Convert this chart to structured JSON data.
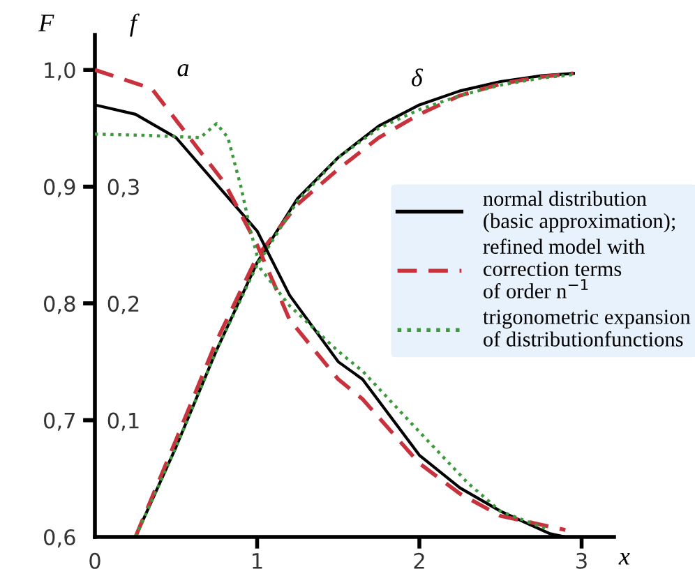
{
  "chart_data": {
    "type": "line",
    "xlabel": "x",
    "ylabel": "F",
    "y2label": "f",
    "xlim": [
      0,
      3.2
    ],
    "xticks": [
      0,
      1,
      2,
      3
    ],
    "ylim": [
      0.6,
      1.03
    ],
    "yticks": [
      {
        "value": 0.6,
        "label": "0,6"
      },
      {
        "value": 0.7,
        "label": "0,7"
      },
      {
        "value": 0.8,
        "label": "0,8"
      },
      {
        "value": 0.9,
        "label": "0,9"
      },
      {
        "value": 1.0,
        "label": "1,0"
      }
    ],
    "y2lim": [
      0,
      0.43
    ],
    "y2ticks": [
      {
        "value": 0.1,
        "label": "0,1"
      },
      {
        "value": 0.2,
        "label": "0,2"
      },
      {
        "value": 0.3,
        "label": "0,3"
      }
    ],
    "grid": false,
    "legend": "right",
    "series": [
      {
        "name": "normal distribution\n(basic approximation);",
        "color": "#000000",
        "line_style": "solid",
        "x": [
          0.25,
          0.5,
          0.75,
          1.0,
          1.25,
          1.5,
          1.75,
          2.0,
          2.25,
          2.5,
          2.75,
          2.95
        ],
        "values": [
          0.6,
          0.677,
          0.76,
          0.835,
          0.89,
          0.925,
          0.952,
          0.97,
          0.982,
          0.99,
          0.995,
          0.997
        ]
      },
      {
        "name": "refined model with\ncorrection terms\nof order n$^{−1}$",
        "color": "#c8323c",
        "line_style": "dashed",
        "x": [
          0.25,
          0.5,
          0.75,
          1.0,
          1.25,
          1.5,
          1.75,
          2.0,
          2.25,
          2.5,
          2.75,
          2.95
        ],
        "values": [
          0.6,
          0.683,
          0.768,
          0.84,
          0.885,
          0.915,
          0.942,
          0.962,
          0.978,
          0.988,
          0.994,
          0.997
        ]
      },
      {
        "name": "trigonometric expansion\nof distributionfunctions",
        "color": "#3c9a3c",
        "line_style": "dotted",
        "x": [
          0.25,
          0.5,
          0.75,
          1.0,
          1.25,
          1.5,
          1.75,
          2.0,
          2.25,
          2.5,
          2.75,
          2.95
        ],
        "values": [
          0.6,
          0.677,
          0.76,
          0.833,
          0.888,
          0.925,
          0.95,
          0.966,
          0.978,
          0.987,
          0.993,
          0.996
        ]
      },
      {
        "axis": "y2",
        "color": "#000000",
        "line_style": "solid",
        "x": [
          0,
          0.25,
          0.5,
          0.8,
          1.0,
          1.2,
          1.5,
          1.65,
          2.0,
          2.25,
          2.5,
          2.8,
          2.9
        ],
        "values": [
          0.37,
          0.362,
          0.342,
          0.294,
          0.262,
          0.207,
          0.15,
          0.135,
          0.07,
          0.042,
          0.022,
          0.003,
          0.0
        ]
      },
      {
        "axis": "y2",
        "color": "#c8323c",
        "line_style": "dashed",
        "x": [
          0,
          0.35,
          0.6,
          0.8,
          1.0,
          1.2,
          1.5,
          1.65,
          2.0,
          2.25,
          2.5,
          2.9
        ],
        "values": [
          0.4,
          0.384,
          0.339,
          0.303,
          0.25,
          0.186,
          0.135,
          0.118,
          0.063,
          0.037,
          0.018,
          0.006
        ]
      },
      {
        "axis": "y2",
        "color": "#3c9a3c",
        "line_style": "dotted",
        "x": [
          0,
          0.3,
          0.65,
          0.75,
          0.82,
          0.9,
          0.96,
          1.02,
          1.2,
          1.5,
          1.65,
          2.0,
          2.3,
          2.5,
          2.8
        ],
        "values": [
          0.345,
          0.344,
          0.342,
          0.354,
          0.342,
          0.3,
          0.262,
          0.23,
          0.198,
          0.159,
          0.142,
          0.09,
          0.046,
          0.022,
          0.006
        ]
      }
    ],
    "annotations": [
      "a",
      "δ"
    ]
  }
}
